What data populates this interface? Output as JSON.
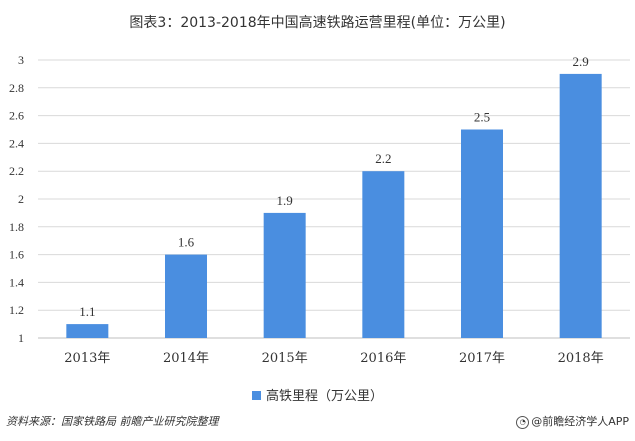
{
  "title": "图表3：2013-2018年中国高速铁路运营里程(单位：万公里)",
  "footer": {
    "source": "资料来源：国家铁路局 前瞻产业研究院整理",
    "brand": "@前瞻经济学人APP"
  },
  "colors": {
    "bar": "#4a8ee0",
    "grid": "#d9d9d9",
    "axis": "#bfbfbf"
  },
  "chart_data": {
    "type": "bar",
    "categories": [
      "2013年",
      "2014年",
      "2015年",
      "2016年",
      "2017年",
      "2018年"
    ],
    "series": [
      {
        "name": "高铁里程（万公里）",
        "values": [
          1.1,
          1.6,
          1.9,
          2.2,
          2.5,
          2.9
        ]
      }
    ],
    "data_labels": [
      "1.1",
      "1.6",
      "1.9",
      "2.2",
      "2.5",
      "2.9"
    ],
    "yticks": [
      "1",
      "1.2",
      "1.4",
      "1.6",
      "1.8",
      "2",
      "2.2",
      "2.4",
      "2.6",
      "2.8",
      "3"
    ],
    "ylim": [
      1,
      3
    ],
    "xlabel": "",
    "ylabel": "",
    "grid": true,
    "legend_position": "bottom"
  }
}
